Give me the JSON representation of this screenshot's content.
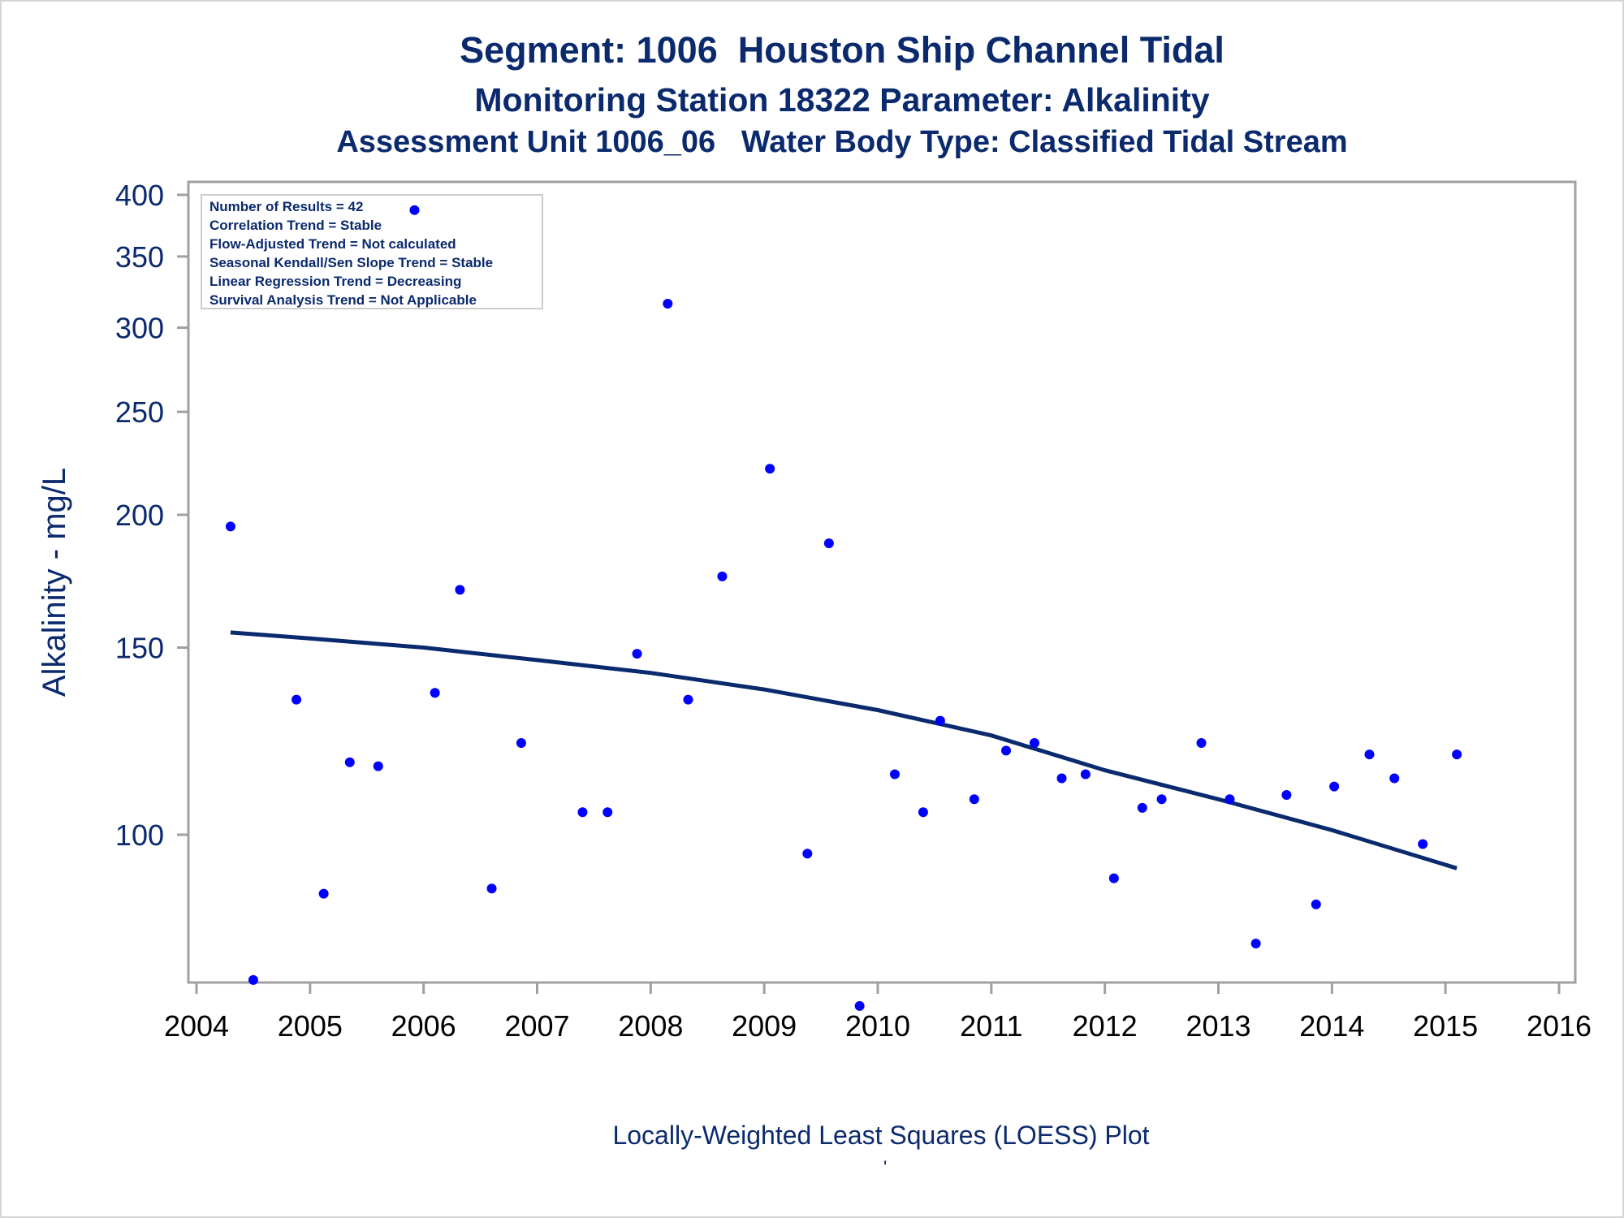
{
  "title": "Segment: 1006  Houston Ship Channel Tidal",
  "subtitle": "Monitoring Station 18322 Parameter: Alkalinity",
  "subtitle2": "Assessment Unit 1006_06   Water Body Type: Classified Tidal Stream",
  "footnote": "Locally-Weighted Least Squares (LOESS) Plot",
  "footnote_mark": "'",
  "stats_box": [
    "Number of Results = 42",
    "Correlation Trend = Stable",
    "Flow-Adjusted Trend = Not calculated",
    "Seasonal Kendall/Sen Slope Trend = Stable",
    "Linear Regression Trend = Decreasing",
    "Survival Analysis Trend = Not Applicable"
  ],
  "colors": {
    "text": "#0b2a6e",
    "points": "#0000ff",
    "loess": "#0b2a6e",
    "axis": "#a0a0a0"
  },
  "chart_data": {
    "type": "scatter",
    "ylabel": "Alkalinity - mg/L",
    "xlabel": "",
    "yscale": "log",
    "xlim": [
      2004,
      2016
    ],
    "ylim": [
      65,
      400
    ],
    "xticks": [
      2004,
      2005,
      2006,
      2007,
      2008,
      2009,
      2010,
      2011,
      2012,
      2013,
      2014,
      2015,
      2016
    ],
    "yticks": [
      100,
      150,
      200,
      250,
      300,
      350,
      400
    ],
    "grid": false,
    "series": [
      {
        "type": "scatter",
        "points": [
          [
            2004.3,
            195
          ],
          [
            2004.5,
            73
          ],
          [
            2004.88,
            134
          ],
          [
            2005.12,
            88
          ],
          [
            2005.35,
            117
          ],
          [
            2005.6,
            116
          ],
          [
            2005.92,
            387
          ],
          [
            2006.1,
            136
          ],
          [
            2006.32,
            170
          ],
          [
            2006.6,
            89
          ],
          [
            2006.86,
            122
          ],
          [
            2007.4,
            105
          ],
          [
            2007.62,
            105
          ],
          [
            2007.88,
            148
          ],
          [
            2008.15,
            316
          ],
          [
            2008.33,
            134
          ],
          [
            2008.63,
            175
          ],
          [
            2009.05,
            221
          ],
          [
            2009.38,
            96
          ],
          [
            2009.57,
            188
          ],
          [
            2009.84,
            69
          ],
          [
            2010.15,
            114
          ],
          [
            2010.4,
            105
          ],
          [
            2010.55,
            128
          ],
          [
            2010.85,
            108
          ],
          [
            2011.13,
            120
          ],
          [
            2011.38,
            122
          ],
          [
            2011.62,
            113
          ],
          [
            2011.83,
            114
          ],
          [
            2012.08,
            91
          ],
          [
            2012.33,
            106
          ],
          [
            2012.5,
            108
          ],
          [
            2012.85,
            122
          ],
          [
            2013.1,
            108
          ],
          [
            2013.33,
            79
          ],
          [
            2013.6,
            109
          ],
          [
            2013.86,
            86
          ],
          [
            2014.02,
            111
          ],
          [
            2014.33,
            119
          ],
          [
            2014.55,
            113
          ],
          [
            2014.8,
            98
          ],
          [
            2015.1,
            119
          ]
        ]
      },
      {
        "type": "line",
        "points": [
          [
            2004.3,
            155
          ],
          [
            2005.0,
            153
          ],
          [
            2006.0,
            150
          ],
          [
            2007.0,
            146
          ],
          [
            2008.0,
            142
          ],
          [
            2009.0,
            137
          ],
          [
            2010.0,
            131
          ],
          [
            2011.0,
            124
          ],
          [
            2012.0,
            115
          ],
          [
            2013.0,
            108
          ],
          [
            2014.0,
            101
          ],
          [
            2015.1,
            93
          ]
        ]
      }
    ]
  }
}
